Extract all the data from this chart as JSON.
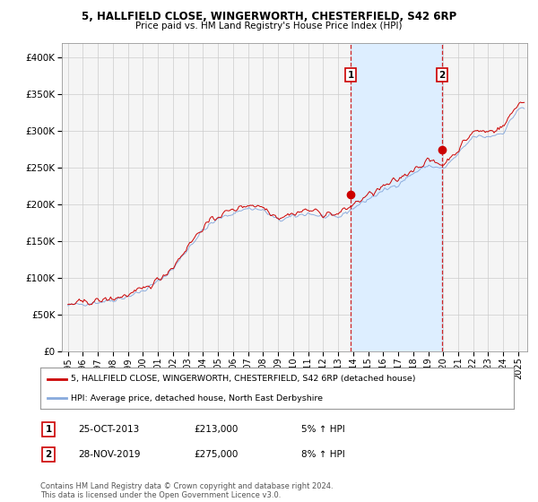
{
  "title1": "5, HALLFIELD CLOSE, WINGERWORTH, CHESTERFIELD, S42 6RP",
  "title2": "Price paid vs. HM Land Registry's House Price Index (HPI)",
  "legend_red": "5, HALLFIELD CLOSE, WINGERWORTH, CHESTERFIELD, S42 6RP (detached house)",
  "legend_blue": "HPI: Average price, detached house, North East Derbyshire",
  "purchase1_date": "25-OCT-2013",
  "purchase1_price": 213000,
  "purchase1_hpi": "5% ↑ HPI",
  "purchase1_label": "1",
  "purchase2_date": "28-NOV-2019",
  "purchase2_price": 275000,
  "purchase2_hpi": "8% ↑ HPI",
  "purchase2_label": "2",
  "footer": "Contains HM Land Registry data © Crown copyright and database right 2024.\nThis data is licensed under the Open Government Licence v3.0.",
  "ylim": [
    0,
    420000
  ],
  "yticks": [
    0,
    50000,
    100000,
    150000,
    200000,
    250000,
    300000,
    350000,
    400000
  ],
  "background_color": "#ffffff",
  "plot_bg_color": "#f5f5f5",
  "shaded_region_color": "#ddeeff",
  "red_line_color": "#cc0000",
  "blue_line_color": "#88aadd",
  "p1_x": 2013.833,
  "p1_y": 213000,
  "p2_x": 2019.917,
  "p2_y": 275000,
  "xmin": 1994.6,
  "xmax": 2025.6,
  "hpi_key_years": [
    1995,
    1996,
    1997,
    1998,
    1999,
    2000,
    2001,
    2002,
    2003,
    2004,
    2005,
    2006,
    2007,
    2008,
    2009,
    2010,
    2011,
    2012,
    2013,
    2014,
    2015,
    2016,
    2017,
    2018,
    2019,
    2020,
    2021,
    2022,
    2023,
    2024,
    2025
  ],
  "hpi_key_vals": [
    62000,
    65000,
    67000,
    70000,
    75000,
    82000,
    95000,
    112000,
    140000,
    165000,
    180000,
    188000,
    195000,
    192000,
    178000,
    183000,
    188000,
    183000,
    182000,
    195000,
    207000,
    218000,
    228000,
    242000,
    253000,
    248000,
    268000,
    292000,
    292000,
    298000,
    330000
  ],
  "noise_seed": 42,
  "noise_hpi": 2500,
  "noise_prop": 3500,
  "prop_scale": 1.025
}
